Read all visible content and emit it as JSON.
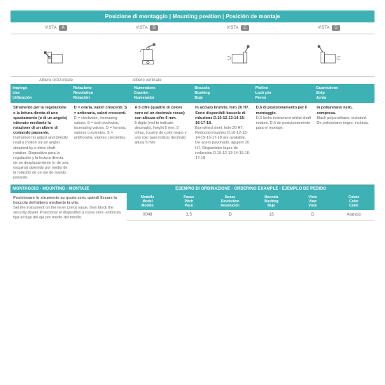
{
  "title": "Posizione di montaggio | Mounting position | Posición de montaje",
  "vista": {
    "label": "VISTA",
    "tags": [
      "A",
      "B",
      "C",
      "D"
    ]
  },
  "captions": [
    "Albero orizzontale",
    "Albero verticale",
    "",
    ""
  ],
  "headers2": [
    {
      "l1": "Impiego",
      "l2": "Use",
      "l3": "Utilización"
    },
    {
      "l1": "Rotazione",
      "l2": "Revolution",
      "l3": "Rotación"
    },
    {
      "l1": "Numeratore",
      "l2": "Counter",
      "l3": "Numerador"
    },
    {
      "l1": "Boccola",
      "l2": "Bushing",
      "l3": "Buje"
    },
    {
      "l1": "Piolino",
      "l2": "Lock pin",
      "l3": "Perno"
    },
    {
      "l1": "Guarnizione",
      "l2": "Strip",
      "l3": "Junta"
    }
  ],
  "content": [
    {
      "b": "Strumento per la regolazione e la lettura diretta di uno spostamento (o di un angolo) ottenuto mediante la rotazione di un albero di comando passante.",
      "p": "Instrument to adjust and directly read a motion (or an angle) obtained by a drive shaft rotation. Dispositivo para la regulación y la lectura directa de un desplazamiento (o de una esquina) obtenido por medio de la rotación de un eje de mando pasante."
    },
    {
      "b": "D = oraria, valori crescenti. S = antioraria, valori crescenti.",
      "p": "D = clockwise, increasing values. S = anti-clockwise, increasing values. D = horaria, valores crecientes. S = antihoraria, valores crecientes."
    },
    {
      "b": "A 5 cifre (quattro di colore nero ed un decimale rosso) con altezza cifre 6 mm.",
      "p": "5 digits (red to indicate decimals), height 6 mm. 5 cifras, (cuatro de color negro y uno rojo para indicar decimal), altura 6 mm."
    },
    {
      "b": "In acciaio brunito, foro 20 H7. Sono disponibili bussole di riduzione D.10-12-13-14-15-16-17-18.",
      "p": "Burnished steel, hole 20 H7. Reduction bushes D.10-12-13-14-15-16-17-18 are available. De acero pavonado, agujero 20 H7. Disponibles bujes de reducción D.10-12-13-14-15-16-17-18"
    },
    {
      "b": "D.6 di posizionamento per il montaggio.",
      "p": "D.6 locks instrument whilst shaft rotates. D.6 de posicionamiento para el montaje."
    },
    {
      "b": "In poliuretano nero, compresa.",
      "p": "Black polyurethane, included. De poliuretano negro, incluida."
    }
  ],
  "mounting": {
    "header_left": "MONTAGGIO - MOUNTING - MONTAJE",
    "header_right": "ESEMPIO DI ORDINAZIONE - ORDERING EXAMPLE - EJEMPLO DE PEDIDO",
    "text_b": "Posizionare lo strumento su quota zero, quindi fissare la boccola dell'albero mediante la vite.",
    "text_p": "Set the instrument on the inner (zero) value, then block the security dowel. Posicionar el dispositivo a cuota cero, entonces fijar el buje del eje por medio del tornillo."
  },
  "order_headers": [
    {
      "l1": "Modello",
      "l2": "Model",
      "l3": "Modelo"
    },
    {
      "l1": "Passo",
      "l2": "Pitch",
      "l3": "Paso"
    },
    {
      "l1": "Senso",
      "l2": "Revolution",
      "l3": "Revolución"
    },
    {
      "l1": "Boccola",
      "l2": "Bushing",
      "l3": "Buje"
    },
    {
      "l1": "Vista",
      "l2": "View",
      "l3": "Vista"
    },
    {
      "l1": "Colore",
      "l2": "Color",
      "l3": "Color"
    }
  ],
  "order_data": [
    "0049",
    "1,5",
    "D",
    "16",
    "D",
    "Arancio"
  ],
  "colors": {
    "teal": "#3eb1b5",
    "gray": "#888"
  }
}
